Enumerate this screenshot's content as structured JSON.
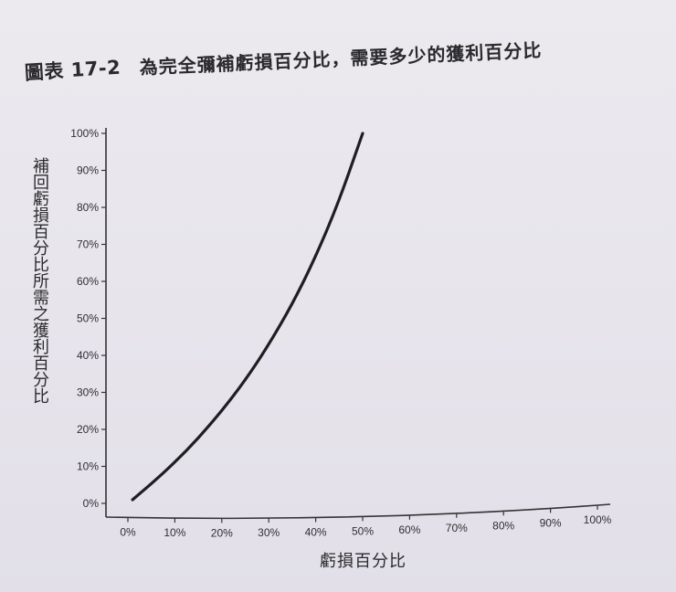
{
  "figure": {
    "label": "圖表 17-2",
    "title": "為完全彌補虧損百分比，需要多少的獲利百分比"
  },
  "chart_data": {
    "type": "line",
    "title": "為完全彌補虧損百分比，需要多少的獲利百分比",
    "xlabel": "虧損百分比",
    "ylabel": "補回虧損百分比所需之獲利百分比",
    "x_ticks": [
      "0%",
      "10%",
      "20%",
      "30%",
      "40%",
      "50%",
      "60%",
      "70%",
      "80%",
      "90%",
      "100%"
    ],
    "y_ticks": [
      "0%",
      "10%",
      "20%",
      "30%",
      "40%",
      "50%",
      "60%",
      "70%",
      "80%",
      "90%",
      "100%"
    ],
    "xlim": [
      0,
      100
    ],
    "ylim": [
      0,
      100
    ],
    "grid": false,
    "series": [
      {
        "x": [
          1,
          5,
          10,
          15,
          20,
          25,
          30,
          35,
          40,
          45,
          50
        ],
        "y": [
          1.0,
          5.3,
          11.1,
          17.6,
          25.0,
          33.3,
          42.9,
          53.8,
          66.7,
          81.8,
          100.0
        ]
      }
    ]
  }
}
